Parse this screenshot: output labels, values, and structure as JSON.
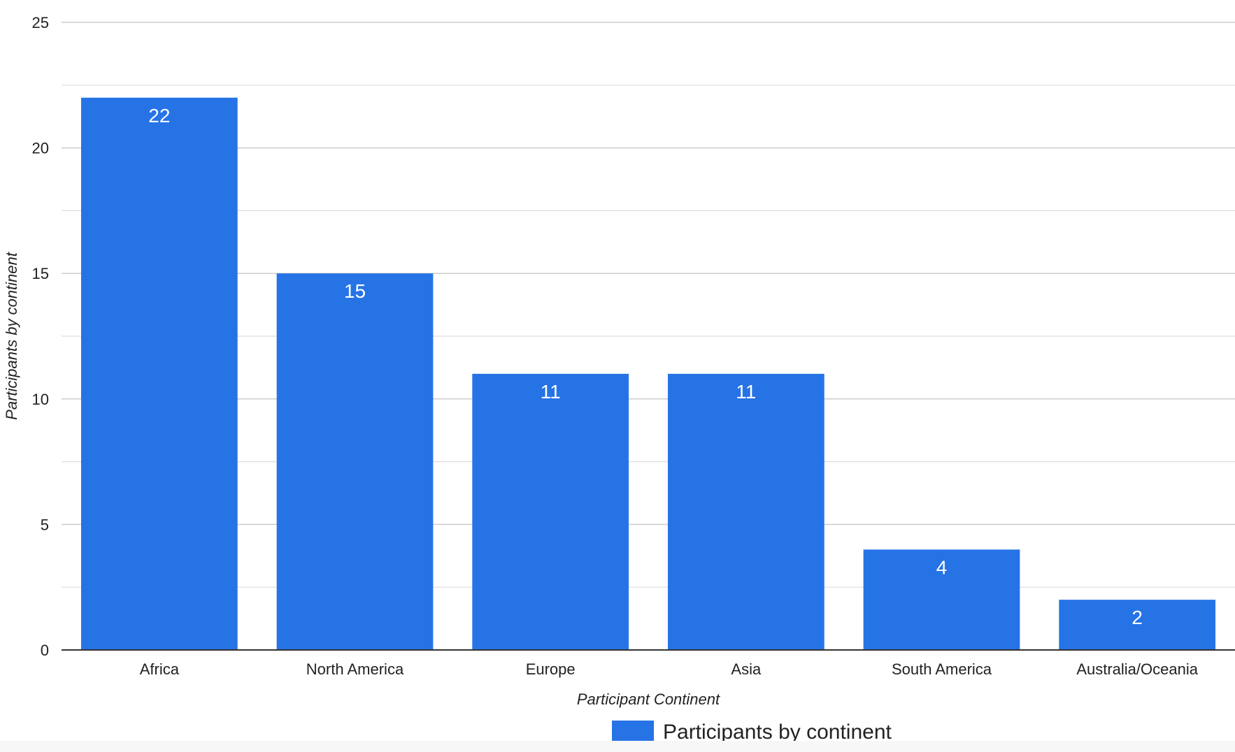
{
  "chart_data": {
    "type": "bar",
    "title": "",
    "xlabel": "Participant Continent",
    "ylabel": "Participants by continent",
    "categories": [
      "Africa",
      "North America",
      "Europe",
      "Asia",
      "South America",
      "Australia/Oceania"
    ],
    "series": [
      {
        "name": "Participants by continent",
        "values": [
          22,
          15,
          11,
          11,
          4,
          2
        ],
        "color": "#2673e6"
      }
    ],
    "ylim": [
      0,
      25
    ],
    "yticks": [
      0,
      5,
      10,
      15,
      20,
      25
    ],
    "grid": true,
    "data_labels": true,
    "legend_position": "bottom"
  }
}
